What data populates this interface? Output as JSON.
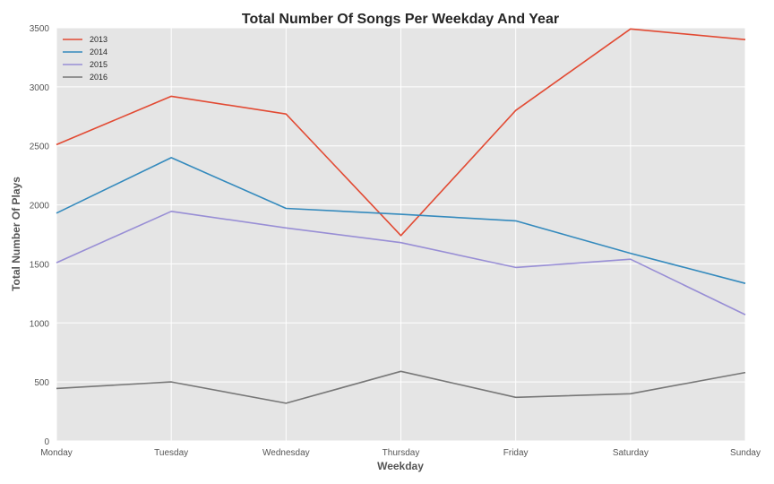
{
  "chart_data": {
    "type": "line",
    "title": "Total Number Of Songs Per Weekday And Year",
    "xlabel": "Weekday",
    "ylabel": "Total Number Of Plays",
    "categories": [
      "Monday",
      "Tuesday",
      "Wednesday",
      "Thursday",
      "Friday",
      "Saturday",
      "Sunday"
    ],
    "ylim": [
      0,
      3500
    ],
    "yticks": [
      0,
      500,
      1000,
      1500,
      2000,
      2500,
      3000,
      3500
    ],
    "grid": true,
    "legend_position": "top-left",
    "series": [
      {
        "name": "2013",
        "color": "#e24a33",
        "values": [
          2510,
          2920,
          2770,
          1740,
          2800,
          3490,
          3400
        ]
      },
      {
        "name": "2014",
        "color": "#348abd",
        "values": [
          1930,
          2400,
          1970,
          1920,
          1865,
          1590,
          1335
        ]
      },
      {
        "name": "2015",
        "color": "#988ed5",
        "values": [
          1510,
          1945,
          1805,
          1680,
          1470,
          1540,
          1070
        ]
      },
      {
        "name": "2016",
        "color": "#777777",
        "values": [
          445,
          500,
          320,
          590,
          370,
          400,
          580
        ]
      }
    ]
  }
}
